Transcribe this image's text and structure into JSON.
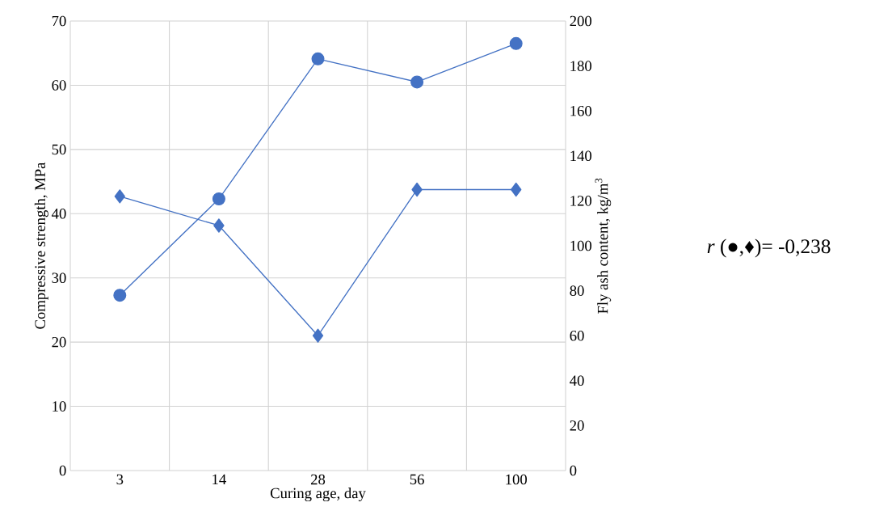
{
  "chart_data": {
    "type": "line",
    "xlabel": "Curing age, day",
    "ylabel": "Compressive strength, MPa",
    "y2label": "Fly ash content, kg/m$^{3}$",
    "categories": [
      "3",
      "14",
      "28",
      "56",
      "100"
    ],
    "series": [
      {
        "color": "#4472c4",
        "marker": "circle",
        "values": [
          27.3,
          42.3,
          64.1,
          60.5,
          66.5
        ]
      },
      {
        "color": "#4472c4",
        "marker": "diamond",
        "axis": "y2",
        "values": [
          122,
          109,
          60,
          125,
          125
        ]
      }
    ],
    "ylim": [
      0,
      70
    ],
    "yticks": [
      0,
      10,
      20,
      30,
      40,
      50,
      60,
      70
    ],
    "y2lim": [
      0,
      200
    ],
    "y2ticks": [
      0,
      20,
      40,
      60,
      80,
      100,
      120,
      140,
      160,
      180,
      200
    ],
    "grid": true,
    "line_style": "solid",
    "annotations": [
      "*r* (●,♦)= -0,238"
    ]
  }
}
